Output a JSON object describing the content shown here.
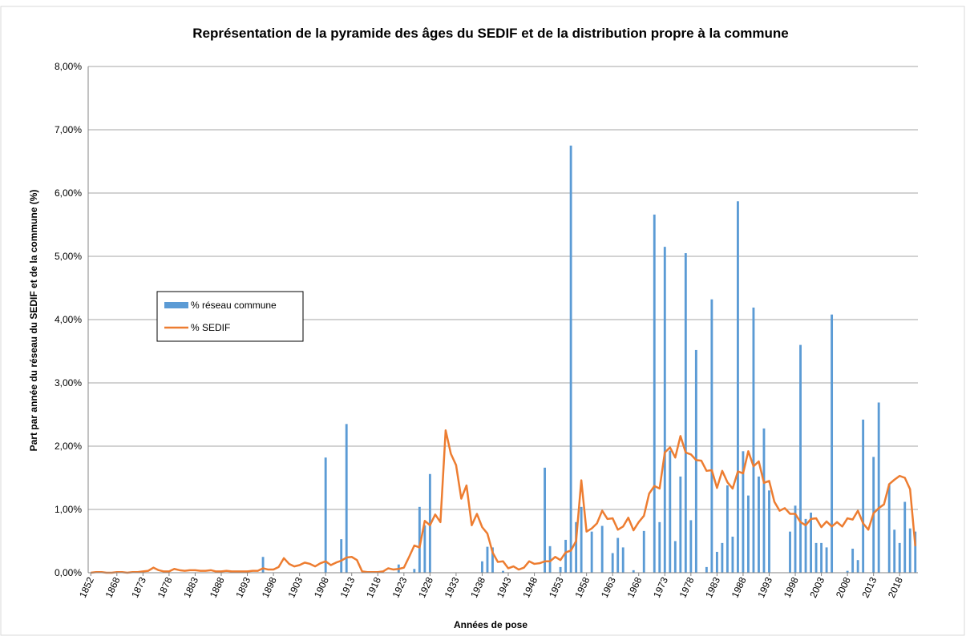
{
  "chart_data": {
    "type": "bar-line",
    "title": "Représentation de la pyramide des âges du SEDIF et de la distribution propre à la commune",
    "x_label": "Années de pose",
    "y_label": "Part par année du réseau du SEDIF et de la commune (%)",
    "categories": [
      "1852",
      null,
      null,
      null,
      null,
      "1868",
      null,
      null,
      null,
      null,
      "1873",
      null,
      null,
      null,
      null,
      "1878",
      null,
      null,
      null,
      null,
      "1883",
      null,
      null,
      null,
      null,
      "1888",
      null,
      null,
      null,
      null,
      "1893",
      null,
      null,
      null,
      null,
      "1898",
      null,
      null,
      null,
      null,
      "1903",
      null,
      null,
      null,
      null,
      "1908",
      null,
      null,
      null,
      null,
      "1913",
      null,
      null,
      null,
      null,
      "1918",
      null,
      null,
      null,
      null,
      "1923",
      null,
      null,
      null,
      null,
      "1928",
      null,
      null,
      null,
      null,
      "1933",
      null,
      null,
      null,
      null,
      "1938",
      null,
      null,
      null,
      null,
      "1943",
      null,
      null,
      null,
      null,
      "1948",
      null,
      null,
      null,
      null,
      "1953",
      null,
      null,
      null,
      null,
      "1958",
      null,
      null,
      null,
      null,
      "1963",
      null,
      null,
      null,
      null,
      "1968",
      null,
      null,
      null,
      null,
      "1973",
      null,
      null,
      null,
      null,
      "1978",
      null,
      null,
      null,
      null,
      "1983",
      null,
      null,
      null,
      null,
      "1988",
      null,
      null,
      null,
      null,
      "1993",
      null,
      null,
      null,
      null,
      "1998",
      null,
      null,
      null,
      null,
      "2003",
      null,
      null,
      null,
      null,
      "2008",
      null,
      null,
      null,
      null,
      "2013",
      null,
      null,
      null,
      null,
      "2018",
      null,
      null,
      null
    ],
    "series": [
      {
        "name": "% réseau commune",
        "type": "bar",
        "color": "#5b9bd5",
        "values": [
          0,
          0,
          0,
          0,
          0,
          0,
          0,
          0,
          0,
          0,
          0,
          0,
          0,
          0,
          0,
          0,
          0,
          0,
          0,
          0,
          0,
          0,
          0,
          0,
          0,
          0,
          0,
          0,
          0,
          0,
          0,
          0,
          0,
          0.25,
          0,
          0,
          0,
          0,
          0,
          0,
          0,
          0,
          0,
          0,
          0,
          1.82,
          0,
          0,
          0.53,
          2.35,
          0,
          0,
          0,
          0,
          0,
          0,
          0,
          0,
          0,
          0.13,
          0,
          0,
          0.06,
          1.04,
          0.75,
          1.56,
          0,
          0,
          0,
          0,
          0,
          0,
          0,
          0,
          0,
          0.18,
          0.41,
          0.4,
          0,
          0.03,
          0,
          0,
          0,
          0,
          0,
          0,
          0,
          1.66,
          0.42,
          0,
          0.09,
          0.52,
          6.75,
          0.8,
          1.04,
          0,
          0.65,
          0,
          0.74,
          0,
          0.31,
          0.55,
          0.4,
          0,
          0.04,
          0,
          0.66,
          0,
          5.66,
          0.8,
          5.15,
          1.93,
          0.5,
          1.52,
          5.05,
          0.83,
          3.52,
          0,
          0.09,
          4.32,
          0.33,
          0.47,
          1.38,
          0.57,
          5.87,
          1.92,
          1.22,
          4.19,
          1.52,
          2.28,
          1.3,
          0,
          0,
          0,
          0.65,
          1.06,
          3.6,
          0.85,
          0.95,
          0.47,
          0.47,
          0.4,
          4.08,
          0,
          0,
          0.03,
          0.38,
          0.2,
          2.42,
          0,
          1.83,
          2.69,
          0,
          1.4,
          0.68,
          0.47,
          1.12,
          0.7,
          0.65
        ]
      },
      {
        "name": "% SEDIF",
        "type": "line",
        "color": "#ed7d31",
        "values": [
          0,
          0.01,
          0.01,
          0,
          0,
          0.01,
          0.01,
          0,
          0.01,
          0.01,
          0.02,
          0.03,
          0.08,
          0.04,
          0.02,
          0.02,
          0.06,
          0.04,
          0.03,
          0.04,
          0.04,
          0.03,
          0.03,
          0.04,
          0.02,
          0.02,
          0.03,
          0.02,
          0.02,
          0.02,
          0.02,
          0.03,
          0.03,
          0.07,
          0.05,
          0.05,
          0.09,
          0.23,
          0.14,
          0.1,
          0.12,
          0.16,
          0.14,
          0.1,
          0.15,
          0.18,
          0.12,
          0.16,
          0.19,
          0.24,
          0.25,
          0.2,
          0.02,
          0.01,
          0.01,
          0.01,
          0.02,
          0.07,
          0.05,
          0.06,
          0.08,
          0.25,
          0.43,
          0.4,
          0.82,
          0.75,
          0.92,
          0.8,
          2.25,
          1.88,
          1.7,
          1.17,
          1.38,
          0.75,
          0.93,
          0.72,
          0.62,
          0.32,
          0.17,
          0.18,
          0.07,
          0.1,
          0.05,
          0.08,
          0.18,
          0.14,
          0.15,
          0.18,
          0.18,
          0.25,
          0.2,
          0.32,
          0.35,
          0.5,
          1.46,
          0.65,
          0.7,
          0.78,
          0.98,
          0.85,
          0.86,
          0.68,
          0.73,
          0.87,
          0.67,
          0.8,
          0.9,
          1.25,
          1.37,
          1.33,
          1.9,
          1.98,
          1.82,
          2.16,
          1.9,
          1.87,
          1.78,
          1.77,
          1.61,
          1.62,
          1.34,
          1.61,
          1.43,
          1.33,
          1.6,
          1.57,
          1.92,
          1.68,
          1.76,
          1.42,
          1.45,
          1.12,
          0.98,
          1.02,
          0.93,
          0.93,
          0.8,
          0.75,
          0.85,
          0.86,
          0.72,
          0.81,
          0.73,
          0.8,
          0.73,
          0.86,
          0.84,
          0.98,
          0.78,
          0.68,
          0.94,
          1.02,
          1.08,
          1.4,
          1.47,
          1.53,
          1.5,
          1.32,
          0.42
        ]
      }
    ],
    "ylim": [
      0,
      8
    ],
    "yticks": [
      {
        "value": 0,
        "label": "0,00%"
      },
      {
        "value": 1,
        "label": "1,00%"
      },
      {
        "value": 2,
        "label": "2,00%"
      },
      {
        "value": 3,
        "label": "3,00%"
      },
      {
        "value": 4,
        "label": "4,00%"
      },
      {
        "value": 5,
        "label": "5,00%"
      },
      {
        "value": 6,
        "label": "6,00%"
      },
      {
        "value": 7,
        "label": "7,00%"
      },
      {
        "value": 8,
        "label": "8,00%"
      }
    ],
    "grid": true,
    "legend": "left"
  }
}
